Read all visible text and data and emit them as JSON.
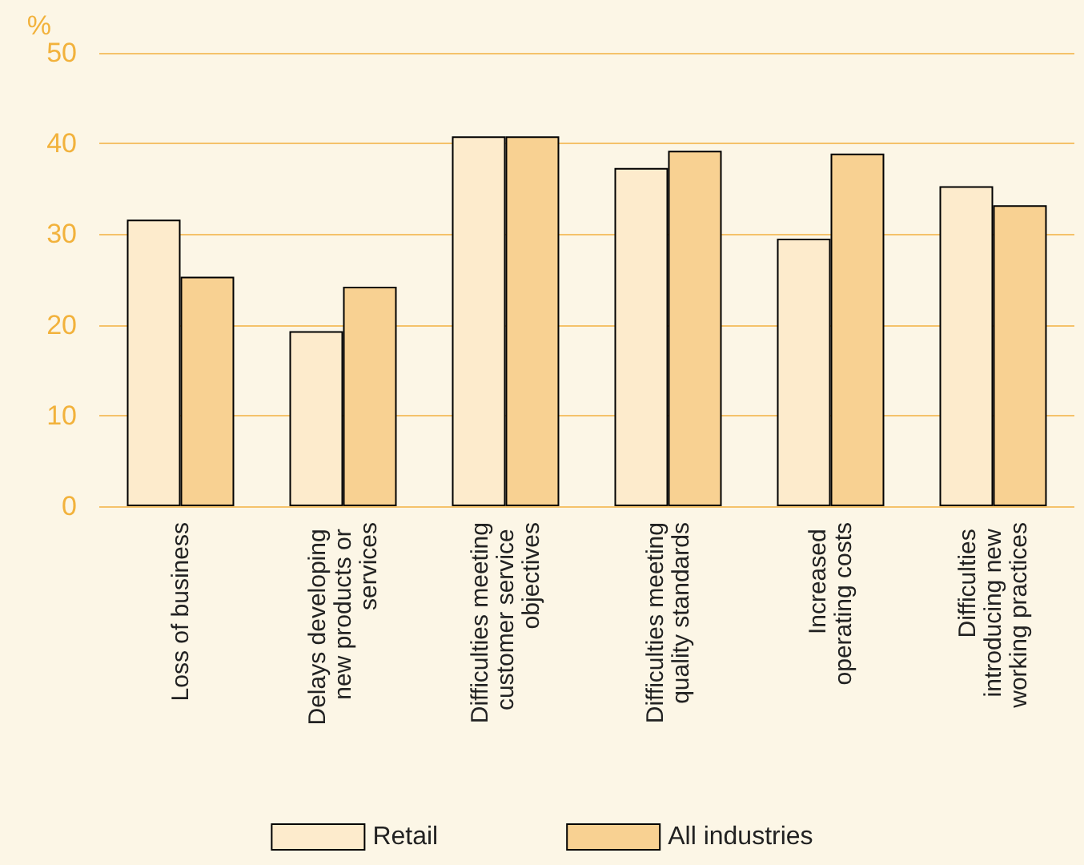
{
  "chart_data": {
    "type": "bar",
    "ylabel": "%",
    "categories": [
      "Loss of business",
      "Delays developing new products or services",
      "Difficulties meeting customer service objectives",
      "Difficulties meeting quality standards",
      "Increased operating costs",
      "Difficulties introducing new working practices"
    ],
    "series": [
      {
        "name": "Retail",
        "color": "#fdebcc",
        "values": [
          31.6,
          19.3,
          40.8,
          37.3,
          29.5,
          35.3
        ]
      },
      {
        "name": "All industries",
        "color": "#f8d192",
        "values": [
          25.3,
          24.2,
          40.8,
          39.2,
          38.9,
          33.2
        ]
      }
    ],
    "ylim": [
      0,
      50
    ],
    "yticks": [
      0,
      10,
      20,
      30,
      40,
      50
    ],
    "grid": "y",
    "legend": "bottom"
  }
}
